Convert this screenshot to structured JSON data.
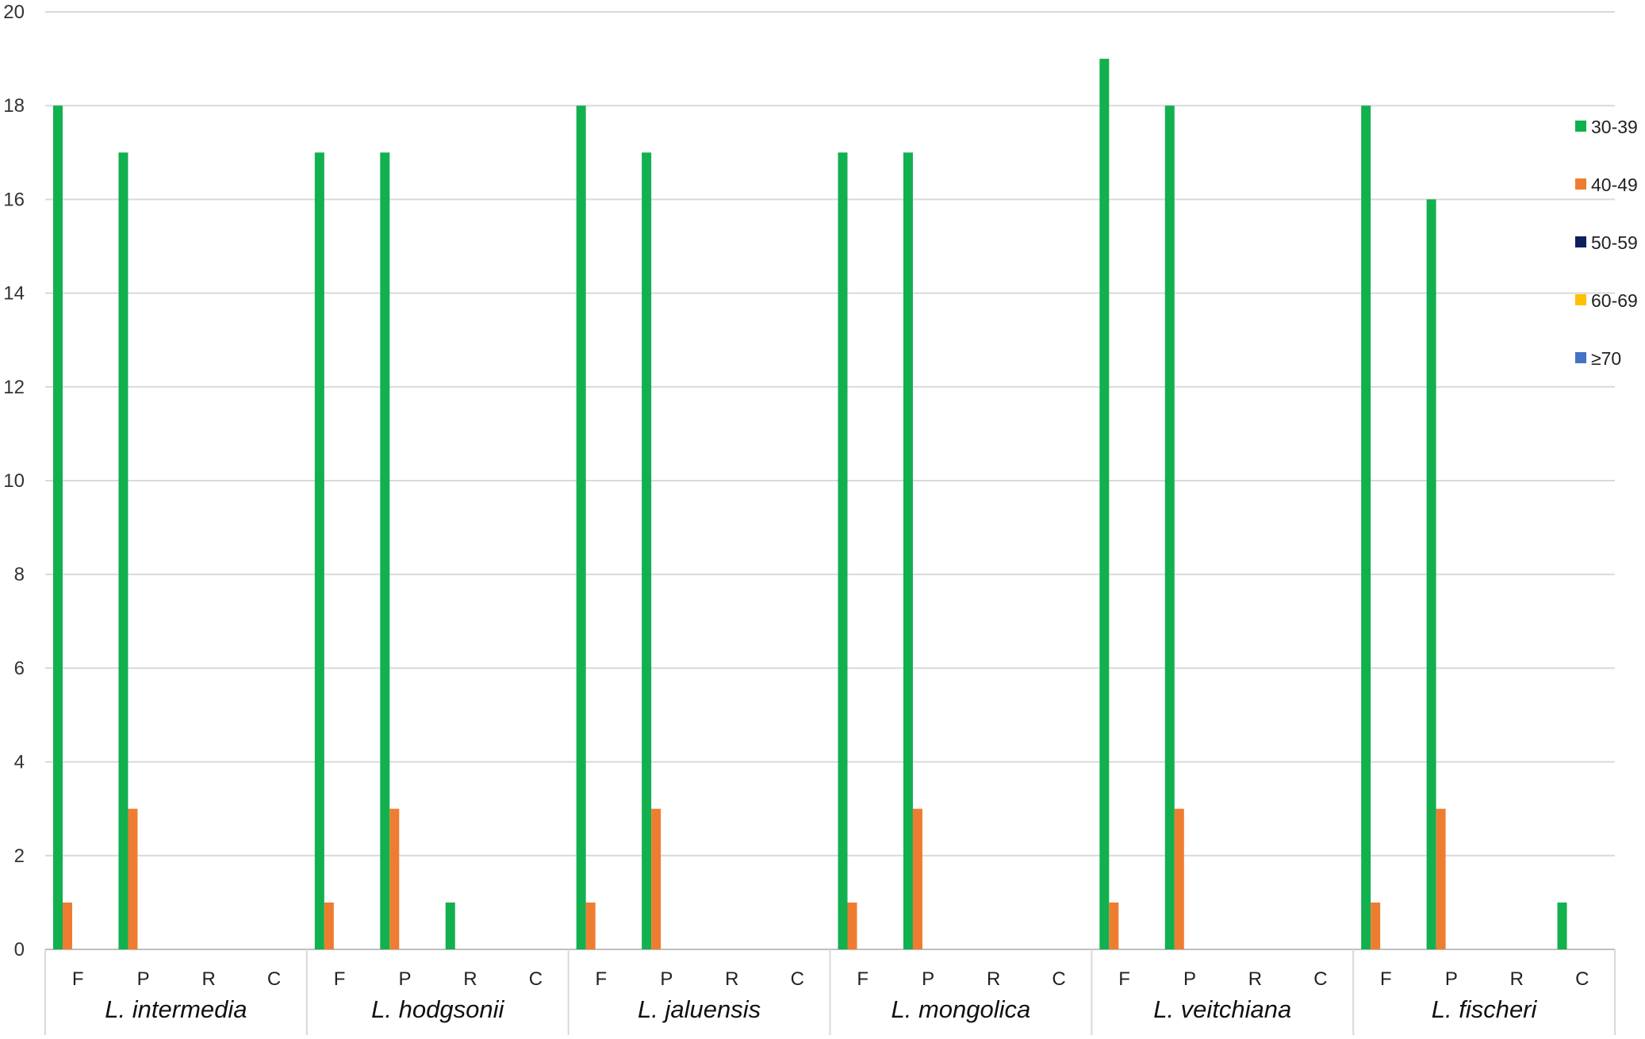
{
  "chart_data": {
    "type": "bar",
    "title": "",
    "xlabel": "",
    "ylabel": "",
    "ylim": [
      0,
      20
    ],
    "yticks": [
      0,
      2,
      4,
      6,
      8,
      10,
      12,
      14,
      16,
      18,
      20
    ],
    "grid": true,
    "legend_position": "right",
    "groups": [
      "L. intermedia",
      "L. hodgsonii",
      "L. jaluensis",
      "L. mongolica",
      "L. veitchiana",
      "L. fischeri"
    ],
    "subcategories": [
      "F",
      "P",
      "R",
      "C"
    ],
    "series": [
      {
        "name": "30-39",
        "color": "#12b04f",
        "values": [
          [
            18,
            17,
            0,
            0
          ],
          [
            17,
            17,
            1,
            0
          ],
          [
            18,
            17,
            0,
            0
          ],
          [
            17,
            17,
            0,
            0
          ],
          [
            19,
            18,
            0,
            0
          ],
          [
            18,
            16,
            0,
            1
          ]
        ]
      },
      {
        "name": "40-49",
        "color": "#ee7d31",
        "values": [
          [
            1,
            3,
            0,
            0
          ],
          [
            1,
            3,
            0,
            0
          ],
          [
            1,
            3,
            0,
            0
          ],
          [
            1,
            3,
            0,
            0
          ],
          [
            1,
            3,
            0,
            0
          ],
          [
            1,
            3,
            0,
            0
          ]
        ]
      },
      {
        "name": "50-59",
        "color": "#0d1f5c",
        "values": [
          [
            0,
            0,
            0,
            0
          ],
          [
            0,
            0,
            0,
            0
          ],
          [
            0,
            0,
            0,
            0
          ],
          [
            0,
            0,
            0,
            0
          ],
          [
            0,
            0,
            0,
            0
          ],
          [
            0,
            0,
            0,
            0
          ]
        ]
      },
      {
        "name": "60-69",
        "color": "#ffc000",
        "values": [
          [
            0,
            0,
            0,
            0
          ],
          [
            0,
            0,
            0,
            0
          ],
          [
            0,
            0,
            0,
            0
          ],
          [
            0,
            0,
            0,
            0
          ],
          [
            0,
            0,
            0,
            0
          ],
          [
            0,
            0,
            0,
            0
          ]
        ]
      },
      {
        "name": "≥70",
        "color": "#4472c4",
        "values": [
          [
            0,
            0,
            0,
            0
          ],
          [
            0,
            0,
            0,
            0
          ],
          [
            0,
            0,
            0,
            0
          ],
          [
            0,
            0,
            0,
            0
          ],
          [
            0,
            0,
            0,
            0
          ],
          [
            0,
            0,
            0,
            0
          ]
        ]
      }
    ]
  }
}
